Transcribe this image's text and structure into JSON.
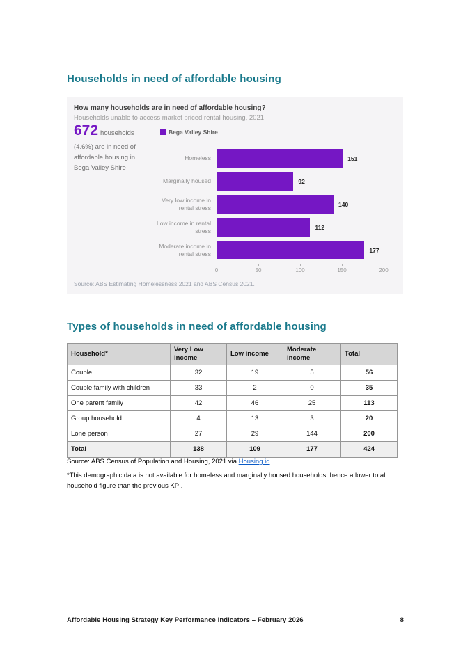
{
  "document": {
    "section1_title": "Households in need of affordable housing",
    "section2_title": "Types of households in need of affordable housing",
    "footer_text": "Affordable Housing Strategy Key Performance Indicators – February 2026",
    "footer_page_number": "8"
  },
  "kpi_card": {
    "question": "How many households are in need of affordable housing?",
    "subtitle": "Households unable to access market priced rental housing, 2021",
    "stat_value": "672",
    "stat_unit": "households",
    "stat_description_lines": [
      "(4.6%) are in need of",
      "affordable housing in",
      "Bega Valley Shire"
    ],
    "legend_label": "Bega Valley Shire",
    "source": "Source: ABS Estimating Homelessness 2021 and ABS Census 2021."
  },
  "chart_data": {
    "type": "bar",
    "orientation": "horizontal",
    "title": "How many households are in need of affordable housing?",
    "subtitle": "Households unable to access market priced rental housing, 2021",
    "series_name": "Bega Valley Shire",
    "categories": [
      "Homeless",
      "Marginally housed",
      "Very low income in rental stress",
      "Low income in rental stress",
      "Moderate income in rental stress"
    ],
    "values": [
      151,
      92,
      140,
      112,
      177
    ],
    "xlim": [
      0,
      200
    ],
    "x_ticks": [
      0,
      50,
      100,
      150,
      200
    ],
    "value_labels_shown": true,
    "legend_position": "top",
    "grid": false,
    "bar_color": "#7517c4"
  },
  "table": {
    "headers": [
      "Household*",
      "Very Low income",
      "Low income",
      "Moderate income",
      "Total"
    ],
    "rows": [
      {
        "label": "Couple",
        "values": [
          "32",
          "19",
          "5",
          "56"
        ]
      },
      {
        "label": "Couple family with children",
        "values": [
          "33",
          "2",
          "0",
          "35"
        ]
      },
      {
        "label": "One parent family",
        "values": [
          "42",
          "46",
          "25",
          "113"
        ]
      },
      {
        "label": "Group household",
        "values": [
          "4",
          "13",
          "3",
          "20"
        ]
      },
      {
        "label": "Lone person",
        "values": [
          "27",
          "29",
          "144",
          "200"
        ]
      },
      {
        "label": "Total",
        "values": [
          "138",
          "109",
          "177",
          "424"
        ],
        "is_total": true
      }
    ],
    "source_prefix": "Source: ABS Census of Population and Housing, 2021 via ",
    "source_link_text": "Housing.id",
    "source_suffix": ".",
    "footnote": "*This demographic data is not available for homeless and marginally housed households, hence a lower total household figure than the previous KPI."
  },
  "colors": {
    "heading_teal": "#1a7a8c",
    "accent_purple": "#7517c4",
    "link_blue": "#0b5bc7",
    "card_background": "#f5f4f6",
    "table_header_bg": "#d6d6d6",
    "table_total_bg": "#efefef"
  }
}
